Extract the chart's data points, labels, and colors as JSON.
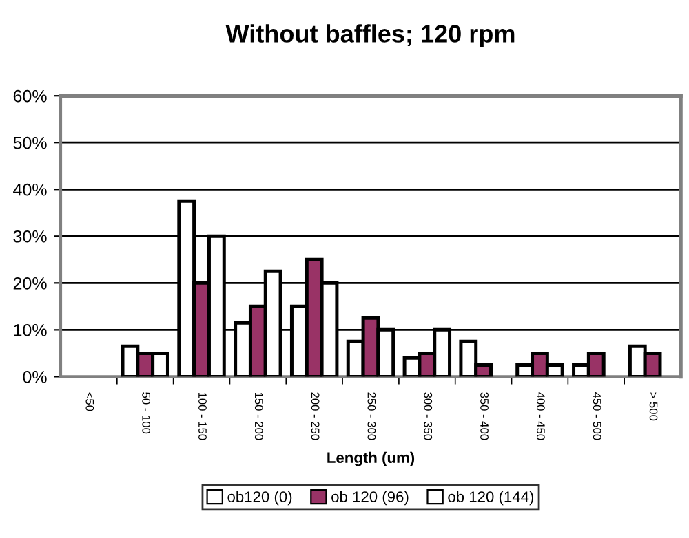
{
  "chart_data": {
    "type": "bar",
    "title": "Without baffles; 120 rpm",
    "xlabel": "Length (um)",
    "categories": [
      "<50",
      "50 - 100",
      "100 - 150",
      "150 - 200",
      "200 - 250",
      "250 - 300",
      "300 - 350",
      "350 - 400",
      "400 - 450",
      "450 - 500",
      "> 500"
    ],
    "series": [
      {
        "name": "ob120 (0)",
        "color": "#ffffff",
        "values": [
          0,
          6.5,
          37.5,
          11.5,
          15,
          7.5,
          4,
          7.5,
          2.5,
          2.5,
          6.5
        ]
      },
      {
        "name": "ob 120 (96)",
        "color": "#993366",
        "values": [
          0,
          5,
          20,
          15,
          25,
          12.5,
          5,
          2.5,
          5,
          5,
          5
        ]
      },
      {
        "name": "ob 120 (144)",
        "color": "#ffffff",
        "values": [
          0,
          5,
          30,
          22.5,
          20,
          10,
          10,
          0,
          2.5,
          0,
          0
        ]
      }
    ],
    "ylim": [
      0,
      60
    ],
    "yticks": [
      {
        "value": 0,
        "label": "0%"
      },
      {
        "value": 10,
        "label": "10%"
      },
      {
        "value": 20,
        "label": "20%"
      },
      {
        "value": 30,
        "label": "30%"
      },
      {
        "value": 40,
        "label": "40%"
      },
      {
        "value": 50,
        "label": "50%"
      },
      {
        "value": 60,
        "label": "60%"
      }
    ],
    "grid": "y",
    "legend": "bottom"
  }
}
